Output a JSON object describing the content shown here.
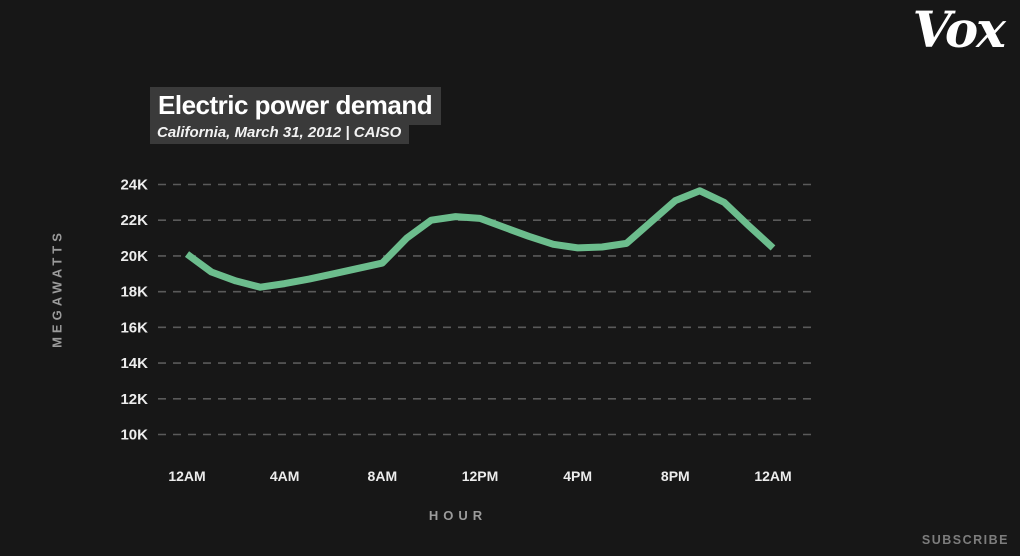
{
  "brand": {
    "logo_text": "Vox"
  },
  "watermark": {
    "subscribe_label": "SUBSCRIBE"
  },
  "chart_data": {
    "type": "line",
    "title": "Electric power demand",
    "subtitle": "California, March 31, 2012 | CAISO",
    "xlabel": "HOUR",
    "ylabel": "MEGAWATTS",
    "series": [
      {
        "name": "Electric power demand (MW)",
        "x_hours": [
          0,
          1,
          2,
          3,
          4,
          5,
          6,
          7,
          8,
          9,
          10,
          11,
          12,
          13,
          14,
          15,
          16,
          17,
          18,
          19,
          20,
          21,
          22,
          23,
          24
        ],
        "values_mw": [
          20100,
          19100,
          18600,
          18250,
          18450,
          18700,
          19000,
          19300,
          19600,
          21000,
          22000,
          22200,
          22100,
          21600,
          21100,
          20650,
          20450,
          20500,
          20700,
          21900,
          23100,
          23650,
          23000,
          21700,
          20450
        ]
      }
    ],
    "y_ticks": [
      {
        "label": "24K",
        "value": 24000
      },
      {
        "label": "22K",
        "value": 22000
      },
      {
        "label": "20K",
        "value": 20000
      },
      {
        "label": "18K",
        "value": 18000
      },
      {
        "label": "16K",
        "value": 16000
      },
      {
        "label": "14K",
        "value": 14000
      },
      {
        "label": "12K",
        "value": 12000
      },
      {
        "label": "10K",
        "value": 10000
      }
    ],
    "x_ticks": [
      {
        "label": "12AM",
        "hour": 0
      },
      {
        "label": "4AM",
        "hour": 4
      },
      {
        "label": "8AM",
        "hour": 8
      },
      {
        "label": "12PM",
        "hour": 12
      },
      {
        "label": "4PM",
        "hour": 16
      },
      {
        "label": "8PM",
        "hour": 20
      },
      {
        "label": "12AM",
        "hour": 24
      }
    ],
    "xlim_hours": [
      0,
      24
    ],
    "ylim": [
      10000,
      24000
    ],
    "grid": "horizontal-dashed",
    "legend": "none",
    "colors": {
      "line": "#6cbd8d",
      "background": "#171717",
      "grid": "#5a5a5a",
      "tick_text": "#ececec",
      "axis_title_text": "#9b9b9b",
      "highlight_box": "#3a3a3a",
      "title_text": "#ffffff"
    }
  }
}
